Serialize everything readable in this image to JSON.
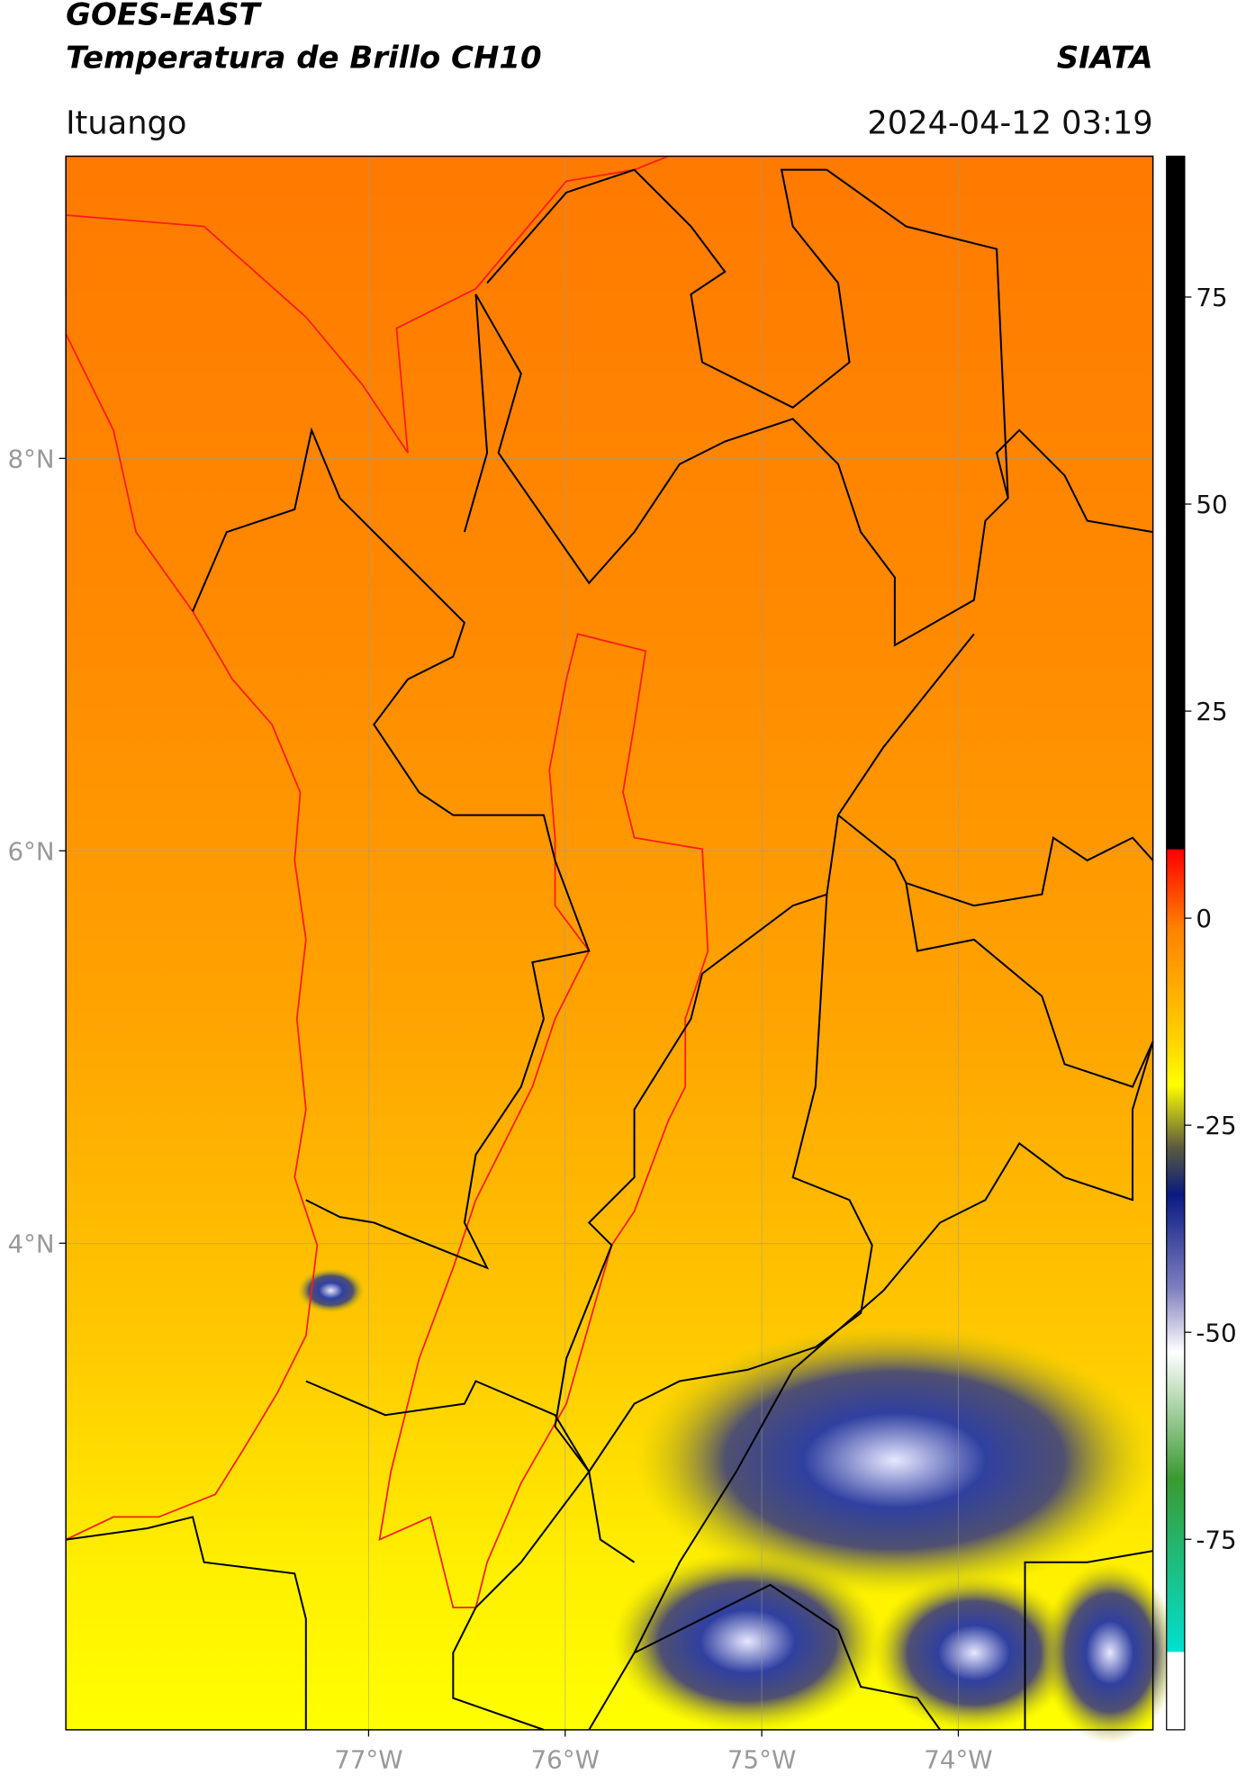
{
  "header": {
    "title": "GOES-EAST",
    "subtitle": "Temperatura de Brillo CH10",
    "source": "SIATA",
    "location": "Ituango",
    "datetime": "2024-04-12 03:19"
  },
  "map": {
    "xlim": [
      -78.54,
      -73.01
    ],
    "ylim": [
      1.52,
      9.54
    ],
    "xticks": [
      {
        "value": -77,
        "label": "77°W"
      },
      {
        "value": -76,
        "label": "76°W"
      },
      {
        "value": -75,
        "label": "75°W"
      },
      {
        "value": -74,
        "label": "74°W"
      }
    ],
    "yticks": [
      {
        "value": 8,
        "label": "8°N"
      },
      {
        "value": 6,
        "label": "6°N"
      },
      {
        "value": 4,
        "label": "4°N"
      }
    ]
  },
  "colorbar": {
    "lim": [
      -98,
      92
    ],
    "ticks": [
      75,
      50,
      25,
      0,
      -25,
      -50,
      -75
    ]
  }
}
